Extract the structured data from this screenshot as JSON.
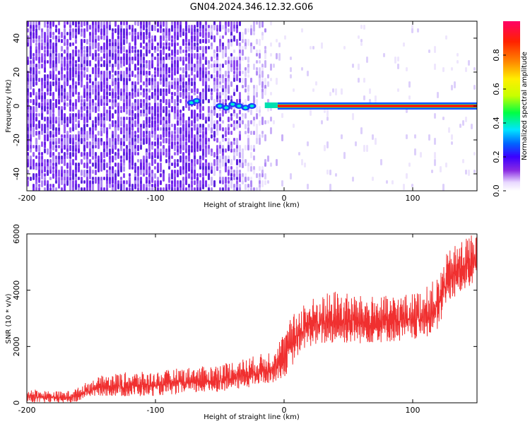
{
  "figure_title": "GN04.2024.346.12.32.G06",
  "chart_data": [
    {
      "type": "heatmap",
      "title": "GN04.2024.346.12.32.G06",
      "xlabel": "Height of straight line (km)",
      "ylabel": "Frequency (Hz)",
      "xlim": [
        -200,
        150
      ],
      "ylim": [
        -50,
        50
      ],
      "xticks": [
        -200,
        -100,
        0,
        100
      ],
      "yticks": [
        -40,
        -20,
        0,
        20,
        40
      ],
      "colorbar": {
        "label": "Normalized spectral amplitude",
        "range": [
          0,
          1
        ],
        "ticks": [
          0.0,
          0.2,
          0.4,
          0.6,
          0.8
        ],
        "colormap": [
          "#ffffff",
          "#e8d8ff",
          "#8a2be2",
          "#3b00ff",
          "#0066ff",
          "#00e5ff",
          "#00ff44",
          "#c8ff00",
          "#ffee00",
          "#ff8800",
          "#ff2200",
          "#ff0066"
        ]
      },
      "features": {
        "dominant_frequency_hz": 0,
        "noise_region_x": [
          -200,
          -20
        ],
        "signal_band_x": [
          -15,
          150
        ],
        "signal_color": "#ff2200",
        "noise_color": "#7b2ff2"
      }
    },
    {
      "type": "line",
      "xlabel": "Height of straight line (km)",
      "ylabel": "SNR (10 * v/v)",
      "xlim": [
        -200,
        150
      ],
      "ylim": [
        0,
        6000
      ],
      "xticks": [
        -200,
        -100,
        0,
        100
      ],
      "yticks": [
        0,
        2000,
        4000,
        6000
      ],
      "color": "#f03030",
      "grid": false,
      "envelope": {
        "x": [
          -200,
          -190,
          -170,
          -160,
          -155,
          -140,
          -120,
          -100,
          -80,
          -60,
          -40,
          -20,
          -10,
          -5,
          0,
          5,
          10,
          15,
          20,
          40,
          60,
          80,
          100,
          110,
          115,
          120,
          125,
          130,
          140,
          150
        ],
        "low": [
          0,
          0,
          0,
          0,
          200,
          250,
          200,
          250,
          300,
          350,
          450,
          600,
          700,
          800,
          900,
          1200,
          1600,
          1900,
          2000,
          2100,
          2100,
          2150,
          2200,
          2300,
          2400,
          2500,
          3400,
          3600,
          4000,
          4300
        ],
        "high": [
          550,
          450,
          400,
          550,
          700,
          1000,
          1100,
          1100,
          1250,
          1300,
          1500,
          1700,
          1900,
          2200,
          2500,
          3000,
          3300,
          3600,
          3700,
          4000,
          3800,
          3800,
          3900,
          4100,
          4300,
          4500,
          5200,
          5500,
          5900,
          6100
        ]
      }
    }
  ]
}
